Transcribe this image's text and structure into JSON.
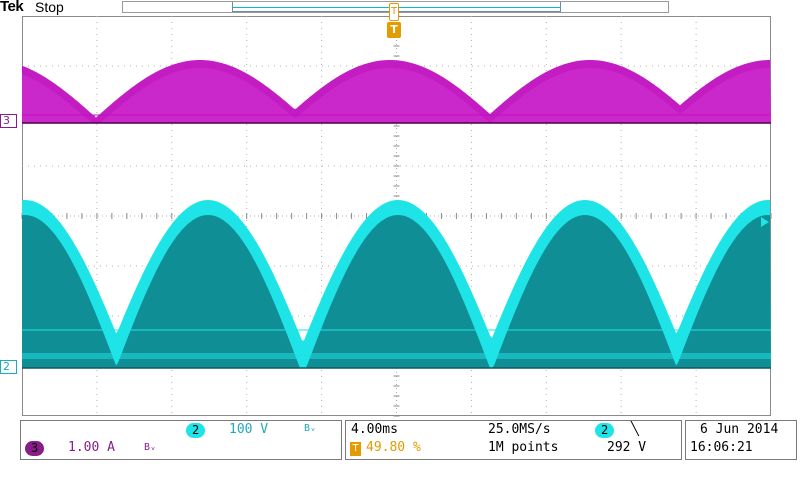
{
  "header": {
    "brand": "Tek",
    "status": "Stop"
  },
  "trigger_marker": {
    "label": "T",
    "color": "#e39b00"
  },
  "channels": {
    "ch3": {
      "label": "3",
      "color": "#c010c0",
      "marker_color": "#8a1c8a"
    },
    "ch2": {
      "label": "2",
      "color": "#1ee4e8",
      "marker_color": "#1faab8"
    }
  },
  "vertical_panel": {
    "ch2": {
      "label": "2",
      "scale": "100 V",
      "bw": "Bᵥ"
    },
    "ch3": {
      "label": "3",
      "scale": "1.00 A",
      "bw": "Bᵥ"
    }
  },
  "timebase": {
    "time_div": "4.00ms",
    "sample_rate": "25.0MS/s",
    "trigger_pos_icon": "T",
    "trigger_pos": "49.80 %",
    "record_length": "1M points"
  },
  "trigger": {
    "source": "2",
    "slope_icon": "╲",
    "level": "292 V"
  },
  "datetime": {
    "date": "6 Jun 2014",
    "time": "16:06:21"
  }
}
